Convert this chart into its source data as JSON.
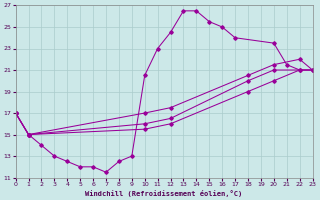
{
  "bg_color": "#cce8e8",
  "grid_color": "#aacccc",
  "line_color": "#990099",
  "xlabel": "Windchill (Refroidissement éolien,°C)",
  "ylim": [
    11,
    27
  ],
  "xlim": [
    0,
    23
  ],
  "yticks": [
    11,
    13,
    15,
    17,
    19,
    21,
    23,
    25,
    27
  ],
  "xticks": [
    0,
    1,
    2,
    3,
    4,
    5,
    6,
    7,
    8,
    9,
    10,
    11,
    12,
    13,
    14,
    15,
    16,
    17,
    18,
    19,
    20,
    21,
    22,
    23
  ],
  "line1_x": [
    0,
    1,
    2,
    3,
    4,
    5,
    6,
    7,
    8,
    9,
    10,
    11,
    12,
    13,
    14,
    15,
    16,
    17,
    20,
    21,
    22,
    23
  ],
  "line1_y": [
    17,
    15,
    14,
    13,
    12.5,
    12,
    12,
    11.5,
    12.5,
    13,
    20.5,
    23,
    24.5,
    26.5,
    26.5,
    25.5,
    25,
    24,
    23.5,
    21.5,
    21,
    21
  ],
  "line2_x": [
    0,
    1,
    10,
    12,
    18,
    20,
    22,
    23
  ],
  "line2_y": [
    17,
    15,
    17.0,
    17.5,
    20.5,
    21.5,
    22.0,
    21
  ],
  "line3_x": [
    0,
    1,
    10,
    12,
    18,
    20,
    22,
    23
  ],
  "line3_y": [
    17,
    15,
    15.5,
    16.0,
    19.0,
    20.0,
    21.0,
    21
  ],
  "line4_x": [
    0,
    1,
    10,
    12,
    18,
    20,
    23
  ],
  "line4_y": [
    17,
    15,
    16.0,
    16.5,
    20.0,
    21.0,
    21
  ]
}
